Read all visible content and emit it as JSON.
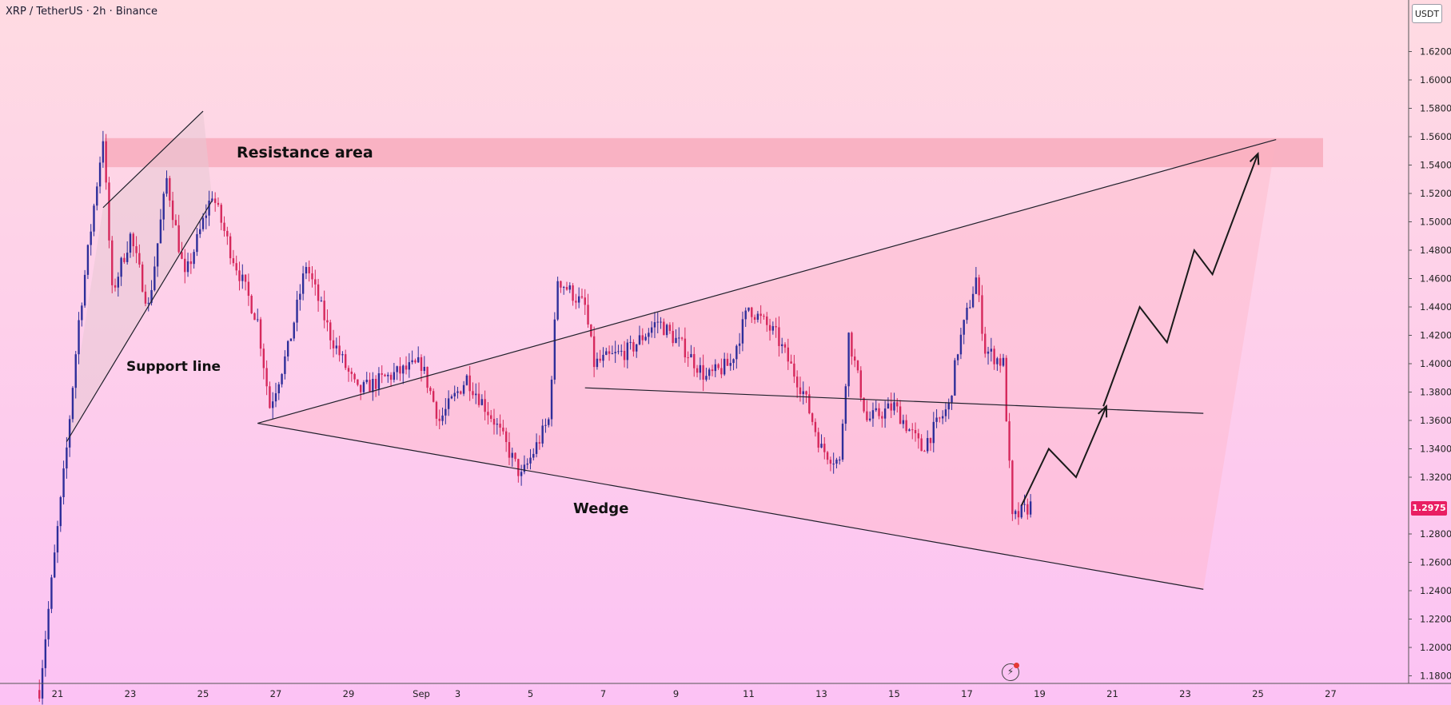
{
  "header": {
    "symbol": "XRP / TetherUS · 2h · Binance",
    "currency": "USDT"
  },
  "current_price": {
    "label": "1.2975",
    "color": "#e91e63"
  },
  "annotations": {
    "resistance": "Resistance area",
    "support": "Support line",
    "wedge": "Wedge"
  },
  "icons": {
    "replay": "lightning-icon"
  },
  "colors": {
    "bull": "#2e2e9a",
    "bear": "#d6285c",
    "bg_top": "#ffdbe2",
    "bg_bottom": "#fcc2f4",
    "zone": "#f7a6b7"
  },
  "chart_data": {
    "type": "candlestick",
    "title": "XRP / TetherUS · 2h · Binance",
    "ylabel": "USDT",
    "ylim": [
      1.165,
      1.665
    ],
    "y_ticks": [
      "1.6200",
      "1.6000",
      "1.5800",
      "1.5600",
      "1.5400",
      "1.5200",
      "1.5000",
      "1.4800",
      "1.4600",
      "1.4400",
      "1.4200",
      "1.4000",
      "1.3800",
      "1.3600",
      "1.3400",
      "1.3200",
      "1.2800",
      "1.2600",
      "1.2400",
      "1.2200",
      "1.2000",
      "1.1800"
    ],
    "x_ticks": [
      "21",
      "23",
      "25",
      "27",
      "29",
      "Sep",
      "3",
      "5",
      "7",
      "9",
      "11",
      "13",
      "15",
      "17",
      "19",
      "21",
      "23",
      "25",
      "27"
    ],
    "last_price": 1.2975,
    "series": [
      {
        "name": "price_path",
        "points": [
          [
            "Aug 20 12:00",
            1.17
          ],
          [
            "Aug 21 06:00",
            1.34
          ],
          [
            "Aug 21 14:00",
            1.43
          ],
          [
            "Aug 22 06:00",
            1.56
          ],
          [
            "Aug 22 12:00",
            1.45
          ],
          [
            "Aug 23 00:00",
            1.49
          ],
          [
            "Aug 23 12:00",
            1.44
          ],
          [
            "Aug 24 00:00",
            1.53
          ],
          [
            "Aug 24 12:00",
            1.46
          ],
          [
            "Aug 25 06:00",
            1.52
          ],
          [
            "Aug 25 18:00",
            1.48
          ],
          [
            "Aug 26 12:00",
            1.43
          ],
          [
            "Aug 26 20:00",
            1.37
          ],
          [
            "Aug 27 08:00",
            1.41
          ],
          [
            "Aug 27 20:00",
            1.47
          ],
          [
            "Aug 28 12:00",
            1.42
          ],
          [
            "Aug 29 06:00",
            1.38
          ],
          [
            "Aug 30 00:00",
            1.39
          ],
          [
            "Aug 31 00:00",
            1.4
          ],
          [
            "Aug 31 12:00",
            1.36
          ],
          [
            "Sep 1 06:00",
            1.39
          ],
          [
            "Sep 2 00:00",
            1.36
          ],
          [
            "Sep 2 18:00",
            1.32
          ],
          [
            "Sep 3 12:00",
            1.36
          ],
          [
            "Sep 3 18:00",
            1.46
          ],
          [
            "Sep 4 12:00",
            1.44
          ],
          [
            "Sep 4 18:00",
            1.4
          ],
          [
            "Sep 5 18:00",
            1.41
          ],
          [
            "Sep 6 12:00",
            1.43
          ],
          [
            "Sep 7 06:00",
            1.41
          ],
          [
            "Sep 7 20:00",
            1.39
          ],
          [
            "Sep 8 12:00",
            1.4
          ],
          [
            "Sep 9 00:00",
            1.44
          ],
          [
            "Sep 9 18:00",
            1.42
          ],
          [
            "Sep 10 12:00",
            1.38
          ],
          [
            "Sep 11 00:00",
            1.34
          ],
          [
            "Sep 11 12:00",
            1.33
          ],
          [
            "Sep 11 18:00",
            1.42
          ],
          [
            "Sep 12 06:00",
            1.36
          ],
          [
            "Sep 13 00:00",
            1.37
          ],
          [
            "Sep 13 18:00",
            1.34
          ],
          [
            "Sep 14 12:00",
            1.37
          ],
          [
            "Sep 14 18:00",
            1.41
          ],
          [
            "Sep 15 06:00",
            1.46
          ],
          [
            "Sep 15 12:00",
            1.41
          ],
          [
            "Sep 16 00:00",
            1.4
          ],
          [
            "Sep 16 06:00",
            1.29
          ],
          [
            "Sep 16 18:00",
            1.3
          ]
        ]
      },
      {
        "name": "projection",
        "points": [
          [
            "Sep 16 12:00",
            1.3
          ],
          [
            "Sep 17 06:00",
            1.34
          ],
          [
            "Sep 18 00:00",
            1.32
          ],
          [
            "Sep 18 20:00",
            1.37
          ]
        ]
      },
      {
        "name": "projection_2",
        "points": [
          [
            "Sep 18 18:00",
            1.37
          ],
          [
            "Sep 19 18:00",
            1.44
          ],
          [
            "Sep 20 12:00",
            1.415
          ],
          [
            "Sep 21 06:00",
            1.48
          ],
          [
            "Sep 21 18:00",
            1.463
          ],
          [
            "Sep 23 00:00",
            1.548
          ]
        ]
      }
    ],
    "resistance_zone": {
      "from": 1.5385,
      "to": 1.559
    },
    "trendlines": [
      {
        "name": "wedge-upper",
        "points": [
          [
            "Aug 26 12:00",
            1.358
          ],
          [
            "Sep 23 12:00",
            1.558
          ]
        ]
      },
      {
        "name": "wedge-lower",
        "points": [
          [
            "Aug 26 12:00",
            1.358
          ],
          [
            "Sep 21 12:00",
            1.241
          ]
        ]
      },
      {
        "name": "inner-support",
        "points": [
          [
            "Sep 4 12:00",
            1.383
          ],
          [
            "Sep 21 12:00",
            1.365
          ]
        ]
      },
      {
        "name": "flag-lower",
        "points": [
          [
            "Aug 21 06:00",
            1.345
          ],
          [
            "Aug 25 06:00",
            1.515
          ]
        ]
      },
      {
        "name": "flag-upper",
        "points": [
          [
            "Aug 22 06:00",
            1.51
          ],
          [
            "Aug 25 00:00",
            1.578
          ]
        ]
      }
    ],
    "grid": false,
    "legend": "none"
  }
}
